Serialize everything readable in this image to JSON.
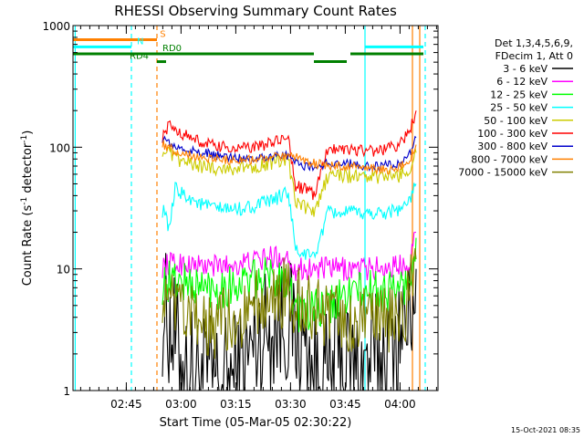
{
  "chart_data": {
    "type": "line",
    "title": "RHESSI Observing Summary Count Rates",
    "xlabel": "Start Time (05-Mar-05 02:30:22)",
    "ylabel_main": "Count Rate (s",
    "ylabel_sup": "-1",
    "ylabel_rest": " detector",
    "ylabel_end": ")",
    "yscale": "log",
    "ylim": [
      1,
      1000
    ],
    "xlim_minutes": [
      0,
      100
    ],
    "x_ticks": [
      {
        "label": "02:45",
        "min": 14.6
      },
      {
        "label": "03:00",
        "min": 29.6
      },
      {
        "label": "03:15",
        "min": 44.6
      },
      {
        "label": "03:30",
        "min": 59.6
      },
      {
        "label": "03:45",
        "min": 74.6
      },
      {
        "label": "04:00",
        "min": 89.6
      }
    ],
    "y_ticks": [
      {
        "label": "1",
        "value": 1
      },
      {
        "label": "10",
        "value": 10
      },
      {
        "label": "100",
        "value": 100
      },
      {
        "label": "1000",
        "value": 1000
      }
    ],
    "legend": {
      "header": [
        "Det 1,3,4,5,6,9,",
        "FDecim 1, Att 0"
      ],
      "entries": [
        {
          "label": "3 - 6 keV",
          "color": "#000000"
        },
        {
          "label": "6 - 12 keV",
          "color": "#ff00ff"
        },
        {
          "label": "12 - 25 keV",
          "color": "#00ff00"
        },
        {
          "label": "25 - 50 keV",
          "color": "#00ffff"
        },
        {
          "label": "50 - 100 keV",
          "color": "#cccc00"
        },
        {
          "label": "100 - 300 keV",
          "color": "#ff0000"
        },
        {
          "label": "300 - 800 keV",
          "color": "#0000cc"
        },
        {
          "label": "800 - 7000 keV",
          "color": "#ff8000"
        },
        {
          "label": "7000 - 15000 keV",
          "color": "#808000"
        }
      ]
    },
    "series": [
      {
        "name": "3 - 6 keV",
        "color": "#000000",
        "points": [
          [
            24.5,
            4.5
          ],
          [
            26,
            3.8
          ],
          [
            28,
            2.5
          ],
          [
            31,
            1.6
          ],
          [
            35,
            1.3
          ],
          [
            40,
            1.2
          ],
          [
            45,
            1.3
          ],
          [
            50,
            2.5
          ],
          [
            55,
            3.5
          ],
          [
            59,
            3.8
          ],
          [
            61,
            3.0
          ],
          [
            63,
            2.5
          ],
          [
            66,
            1.4
          ],
          [
            70,
            1.2
          ],
          [
            73,
            2.0
          ],
          [
            76,
            1.5
          ],
          [
            80,
            1.6
          ],
          [
            85,
            2.0
          ],
          [
            89,
            2.8
          ],
          [
            92,
            3.5
          ],
          [
            94,
            10
          ]
        ]
      },
      {
        "name": "6 - 12 keV",
        "color": "#ff00ff",
        "points": [
          [
            24.5,
            10.5
          ],
          [
            27,
            11
          ],
          [
            30,
            11
          ],
          [
            35,
            10.5
          ],
          [
            40,
            10.5
          ],
          [
            45,
            11
          ],
          [
            50,
            11.5
          ],
          [
            55,
            12.5
          ],
          [
            59,
            12.5
          ],
          [
            61,
            10
          ],
          [
            66,
            10
          ],
          [
            70,
            10
          ],
          [
            76,
            10
          ],
          [
            80,
            10
          ],
          [
            85,
            10.2
          ],
          [
            89,
            10.5
          ],
          [
            92,
            11.5
          ],
          [
            94,
            20
          ]
        ]
      },
      {
        "name": "12 - 25 keV",
        "color": "#00ff00",
        "points": [
          [
            24.5,
            7.5
          ],
          [
            27,
            8
          ],
          [
            30,
            7.8
          ],
          [
            35,
            7
          ],
          [
            40,
            7
          ],
          [
            45,
            7.5
          ],
          [
            50,
            8
          ],
          [
            55,
            8.5
          ],
          [
            59,
            8.8
          ],
          [
            61,
            4.5
          ],
          [
            66,
            4.5
          ],
          [
            70,
            4.8
          ],
          [
            76,
            6.5
          ],
          [
            80,
            6.5
          ],
          [
            85,
            6.6
          ],
          [
            89,
            6.8
          ],
          [
            92,
            7.5
          ],
          [
            94,
            18
          ]
        ]
      },
      {
        "name": "25 - 50 keV",
        "color": "#00ffff",
        "points": [
          [
            24.5,
            30
          ],
          [
            25.5,
            31
          ],
          [
            26,
            18
          ],
          [
            28,
            45
          ],
          [
            31,
            40
          ],
          [
            35,
            34
          ],
          [
            40,
            31
          ],
          [
            45,
            31
          ],
          [
            50,
            33
          ],
          [
            55,
            37
          ],
          [
            59,
            43
          ],
          [
            61,
            14
          ],
          [
            64,
            13
          ],
          [
            66,
            12.5
          ],
          [
            70,
            29
          ],
          [
            76,
            29
          ],
          [
            80,
            28.5
          ],
          [
            85,
            29
          ],
          [
            89,
            31
          ],
          [
            92,
            35
          ],
          [
            94,
            50
          ]
        ]
      },
      {
        "name": "50 - 100 keV",
        "color": "#cccc00",
        "points": [
          [
            24.5,
            95
          ],
          [
            26,
            90
          ],
          [
            28,
            80
          ],
          [
            31,
            75
          ],
          [
            35,
            70
          ],
          [
            40,
            67
          ],
          [
            45,
            67
          ],
          [
            50,
            70
          ],
          [
            55,
            75
          ],
          [
            59,
            78
          ],
          [
            61,
            35
          ],
          [
            64,
            32
          ],
          [
            66,
            28
          ],
          [
            70,
            60
          ],
          [
            76,
            58
          ],
          [
            80,
            57
          ],
          [
            85,
            57
          ],
          [
            89,
            58
          ],
          [
            92,
            65
          ],
          [
            94,
            90
          ]
        ]
      },
      {
        "name": "100 - 300 keV",
        "color": "#ff0000",
        "points": [
          [
            24.5,
            120
          ],
          [
            26,
            150
          ],
          [
            28,
            140
          ],
          [
            31,
            125
          ],
          [
            35,
            110
          ],
          [
            40,
            100
          ],
          [
            45,
            98
          ],
          [
            50,
            100
          ],
          [
            55,
            110
          ],
          [
            59,
            120
          ],
          [
            61,
            48
          ],
          [
            64,
            45
          ],
          [
            66,
            40
          ],
          [
            70,
            100
          ],
          [
            76,
            97
          ],
          [
            80,
            93
          ],
          [
            85,
            95
          ],
          [
            89,
            105
          ],
          [
            92,
            130
          ],
          [
            94,
            200
          ]
        ]
      },
      {
        "name": "300 - 800 keV",
        "color": "#0000cc",
        "points": [
          [
            24.5,
            120
          ],
          [
            26,
            110
          ],
          [
            28,
            100
          ],
          [
            31,
            95
          ],
          [
            35,
            90
          ],
          [
            40,
            85
          ],
          [
            45,
            82
          ],
          [
            50,
            82
          ],
          [
            55,
            85
          ],
          [
            59,
            85
          ],
          [
            61,
            75
          ],
          [
            64,
            70
          ],
          [
            66,
            68
          ],
          [
            70,
            74
          ],
          [
            76,
            73
          ],
          [
            80,
            70
          ],
          [
            85,
            70
          ],
          [
            89,
            72
          ],
          [
            92,
            85
          ],
          [
            94,
            120
          ]
        ]
      },
      {
        "name": "800 - 7000 keV",
        "color": "#ff8000",
        "points": [
          [
            24.5,
            108
          ],
          [
            26,
            100
          ],
          [
            28,
            93
          ],
          [
            31,
            88
          ],
          [
            35,
            83
          ],
          [
            40,
            80
          ],
          [
            45,
            78
          ],
          [
            50,
            79
          ],
          [
            55,
            82
          ],
          [
            59,
            83
          ],
          [
            61,
            82
          ],
          [
            64,
            78
          ],
          [
            66,
            74
          ],
          [
            70,
            70
          ],
          [
            76,
            70
          ],
          [
            80,
            67
          ],
          [
            85,
            65
          ],
          [
            89,
            67
          ],
          [
            92,
            78
          ],
          [
            94,
            105
          ]
        ]
      },
      {
        "name": "7000 - 15000 keV",
        "color": "#808000",
        "points": [
          [
            24.5,
            6.5
          ],
          [
            26,
            5
          ],
          [
            28,
            4.5
          ],
          [
            31,
            4
          ],
          [
            35,
            3.5
          ],
          [
            40,
            3.5
          ],
          [
            45,
            4
          ],
          [
            50,
            5
          ],
          [
            55,
            6
          ],
          [
            59,
            6.5
          ],
          [
            61,
            5.5
          ],
          [
            64,
            5
          ],
          [
            66,
            5
          ],
          [
            70,
            4
          ],
          [
            76,
            3.5
          ],
          [
            80,
            3.5
          ],
          [
            85,
            3.5
          ],
          [
            89,
            4
          ],
          [
            92,
            5.5
          ],
          [
            94,
            12
          ]
        ]
      }
    ],
    "flag_bars": [
      {
        "label": "S",
        "color": "#ff8000",
        "y": 765,
        "segments": [
          [
            0,
            23
          ]
        ],
        "label_min": 23.8
      },
      {
        "label": "N",
        "color": "#00ffff",
        "y": 668,
        "segments": [
          [
            0,
            16
          ],
          [
            80,
            96
          ]
        ],
        "label_min": 17.5
      },
      {
        "label": "RD0",
        "color": "#008000",
        "y": 585,
        "segments": [
          [
            0,
            66
          ],
          [
            76,
            96
          ]
        ],
        "label_min": 24.5
      },
      {
        "label": "RD4",
        "color": "#008000",
        "y": 505,
        "segments": [
          [
            23,
            25.5
          ],
          [
            66,
            75
          ]
        ],
        "label_min": 15.5
      }
    ],
    "vlines": [
      {
        "min": 0.6,
        "color": "#00ffff",
        "dash": false
      },
      {
        "min": 16,
        "color": "#00ffff",
        "dash": true
      },
      {
        "min": 23,
        "color": "#ff8000",
        "dash": true
      },
      {
        "min": 80,
        "color": "#00ffff",
        "dash": false
      },
      {
        "min": 93,
        "color": "#ff8000",
        "dash": false
      },
      {
        "min": 95,
        "color": "#ff8000",
        "dash": false
      },
      {
        "min": 96.5,
        "color": "#00ffff",
        "dash": true
      }
    ],
    "timestamp": "15-Oct-2021 08:35"
  }
}
